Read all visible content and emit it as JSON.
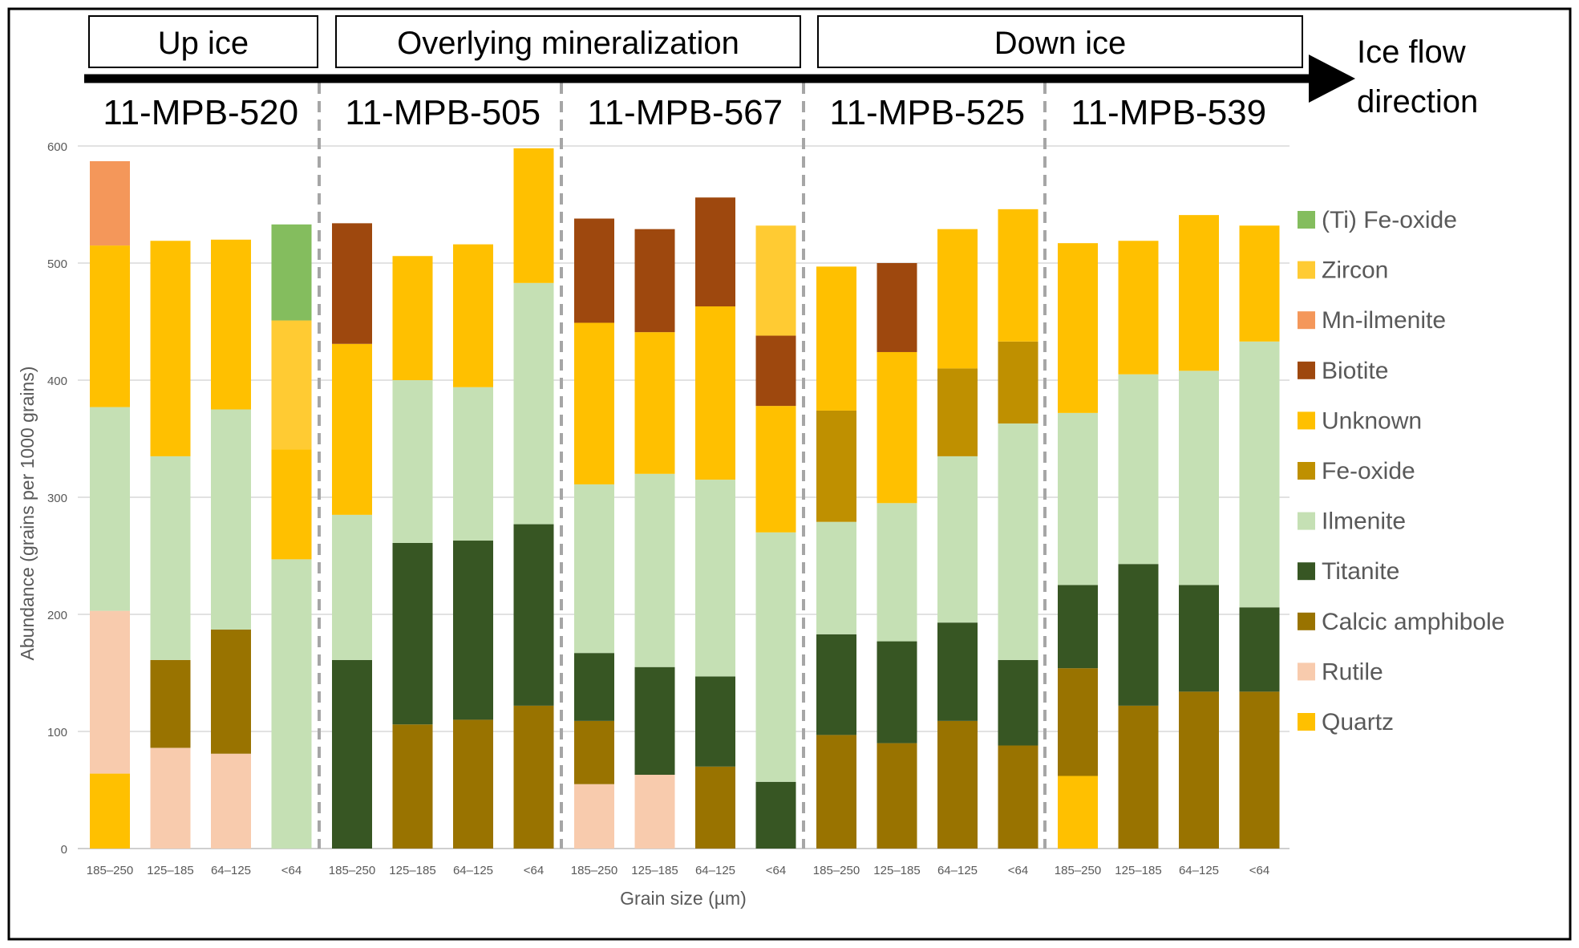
{
  "chart_data": {
    "type": "stacked-bar",
    "ylabel": "Abundance (grains per 1000 grains)",
    "xlabel": "Grain size (µm)",
    "ylim": [
      0,
      600
    ],
    "yticks": [
      0,
      100,
      200,
      300,
      400,
      500,
      600
    ],
    "gridlines": true,
    "legend_position": "right",
    "regions": [
      {
        "label": "Up ice",
        "first_sample": 0,
        "last_sample": 0
      },
      {
        "label": "Overlying mineralization",
        "first_sample": 1,
        "last_sample": 2
      },
      {
        "label": "Down ice",
        "first_sample": 3,
        "last_sample": 4
      }
    ],
    "arrow_label_line1": "Ice flow",
    "arrow_label_line2": "direction",
    "size_fractions": [
      "185–250",
      "125–185",
      "64–125",
      "<64"
    ],
    "samples": [
      "11-MPB-520",
      "11-MPB-505",
      "11-MPB-567",
      "11-MPB-525",
      "11-MPB-539"
    ],
    "series": [
      {
        "name": "Quartz",
        "color": "#FFC000",
        "values": [
          [
            64,
            0,
            0,
            0
          ],
          [
            0,
            0,
            0,
            0
          ],
          [
            0,
            0,
            0,
            0
          ],
          [
            0,
            0,
            0,
            0
          ],
          [
            62,
            0,
            0,
            0
          ]
        ]
      },
      {
        "name": "Rutile",
        "color": "#F8CBAD",
        "values": [
          [
            139,
            86,
            81,
            0
          ],
          [
            0,
            0,
            0,
            0
          ],
          [
            55,
            63,
            0,
            0
          ],
          [
            0,
            0,
            0,
            0
          ],
          [
            0,
            0,
            0,
            0
          ]
        ]
      },
      {
        "name": "Calcic amphibole",
        "color": "#997300",
        "values": [
          [
            0,
            75,
            106,
            0
          ],
          [
            0,
            106,
            110,
            122
          ],
          [
            54,
            0,
            70,
            0
          ],
          [
            97,
            90,
            109,
            88
          ],
          [
            92,
            122,
            134,
            134
          ]
        ]
      },
      {
        "name": "Titanite",
        "color": "#375623",
        "values": [
          [
            0,
            0,
            0,
            0
          ],
          [
            161,
            155,
            153,
            155
          ],
          [
            58,
            92,
            77,
            57
          ],
          [
            86,
            87,
            84,
            73
          ],
          [
            71,
            121,
            91,
            72
          ]
        ]
      },
      {
        "name": "Ilmenite",
        "color": "#C5E0B4",
        "values": [
          [
            174,
            174,
            188,
            247
          ],
          [
            124,
            139,
            131,
            206
          ],
          [
            144,
            165,
            168,
            213
          ],
          [
            96,
            118,
            142,
            202
          ],
          [
            147,
            162,
            183,
            227
          ]
        ]
      },
      {
        "name": "Fe-oxide",
        "color": "#BF9000",
        "values": [
          [
            0,
            0,
            0,
            0
          ],
          [
            0,
            0,
            0,
            0
          ],
          [
            0,
            0,
            0,
            0
          ],
          [
            95,
            0,
            75,
            70
          ],
          [
            0,
            0,
            0,
            0
          ]
        ]
      },
      {
        "name": "Unknown",
        "color": "#FFC000",
        "values": [
          [
            138,
            184,
            145,
            94
          ],
          [
            146,
            106,
            122,
            115
          ],
          [
            138,
            121,
            148,
            108
          ],
          [
            123,
            129,
            119,
            113
          ],
          [
            145,
            114,
            133,
            99
          ]
        ]
      },
      {
        "name": "Biotite",
        "color": "#9E480E",
        "values": [
          [
            0,
            0,
            0,
            0
          ],
          [
            103,
            0,
            0,
            0
          ],
          [
            89,
            88,
            93,
            60
          ],
          [
            0,
            76,
            0,
            0
          ],
          [
            0,
            0,
            0,
            0
          ]
        ]
      },
      {
        "name": "Mn-ilmenite",
        "color": "#F4975A",
        "values": [
          [
            72,
            0,
            0,
            0
          ],
          [
            0,
            0,
            0,
            0
          ],
          [
            0,
            0,
            0,
            0
          ],
          [
            0,
            0,
            0,
            0
          ],
          [
            0,
            0,
            0,
            0
          ]
        ]
      },
      {
        "name": "Zircon",
        "color": "#FFCB33",
        "values": [
          [
            0,
            0,
            0,
            110
          ],
          [
            0,
            0,
            0,
            0
          ],
          [
            0,
            0,
            0,
            94
          ],
          [
            0,
            0,
            0,
            0
          ],
          [
            0,
            0,
            0,
            0
          ]
        ]
      },
      {
        "name": "(Ti) Fe-oxide",
        "color": "#84BD5E",
        "values": [
          [
            0,
            0,
            0,
            82
          ],
          [
            0,
            0,
            0,
            0
          ],
          [
            0,
            0,
            0,
            0
          ],
          [
            0,
            0,
            0,
            0
          ],
          [
            0,
            0,
            0,
            0
          ]
        ]
      }
    ]
  }
}
